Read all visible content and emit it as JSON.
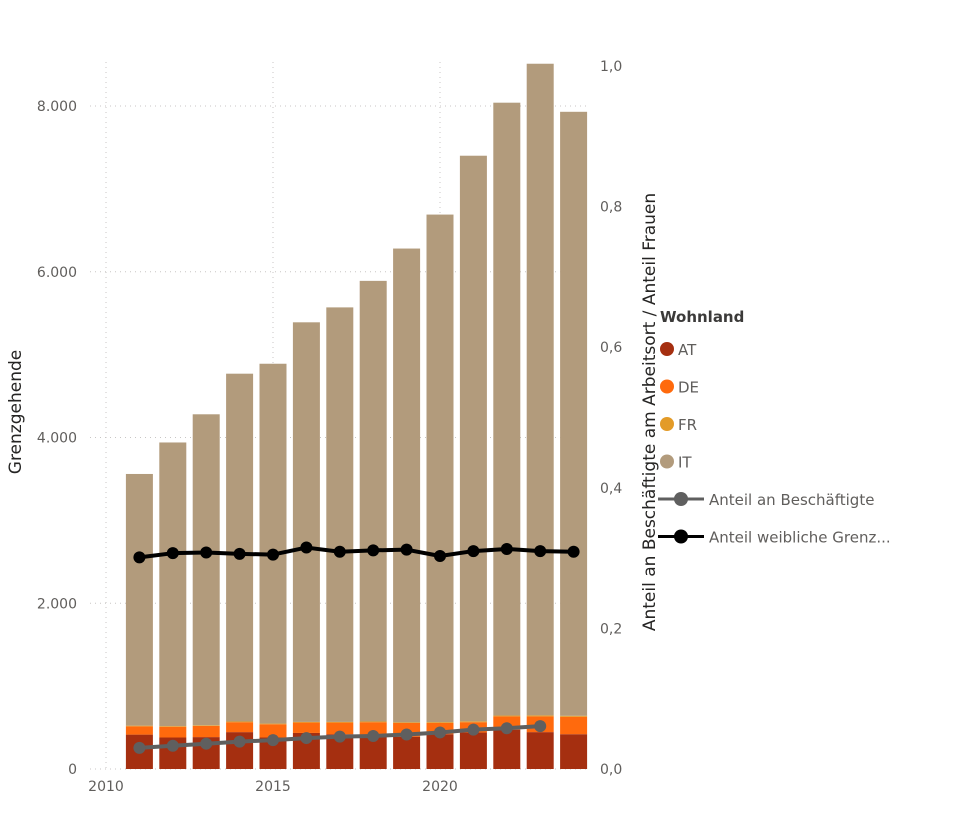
{
  "chart_data": {
    "type": "bar",
    "subtype": "stacked-bar-with-lines",
    "title": "",
    "xlabel": "",
    "ylabel": "Grenzgehende",
    "y2label": "Anteil an Beschäftigte am Arbeitsort / Anteil Frauen",
    "x_ticks": [
      "2010",
      "2015",
      "2020"
    ],
    "x_tick_values": [
      2010,
      2015,
      2020
    ],
    "xlim": [
      2010,
      2024.5
    ],
    "ylim": [
      0,
      8500
    ],
    "y_ticks": [
      0,
      2000,
      4000,
      6000,
      8000
    ],
    "y_tick_labels": [
      "0",
      "2.000",
      "4.000",
      "6.000",
      "8.000"
    ],
    "y2lim": [
      0,
      1.0
    ],
    "y2_ticks": [
      0,
      0.2,
      0.4,
      0.6,
      0.8,
      1.0
    ],
    "y2_tick_labels": [
      "0,0",
      "0,2",
      "0,4",
      "0,6",
      "0,8",
      "1,0"
    ],
    "grid": true,
    "legend_position": "right",
    "legend_title": "Wohnland",
    "x": [
      2011,
      2012,
      2013,
      2014,
      2015,
      2016,
      2017,
      2018,
      2019,
      2020,
      2021,
      2022,
      2023,
      2024
    ],
    "series": [
      {
        "name": "AT",
        "type": "bar",
        "color": "#A52F10",
        "values": [
          415,
          380,
          385,
          445,
          380,
          435,
          420,
          410,
          390,
          420,
          440,
          475,
          445,
          420
        ]
      },
      {
        "name": "DE",
        "type": "bar",
        "color": "#FF6A0D",
        "values": [
          100,
          130,
          135,
          120,
          160,
          125,
          140,
          155,
          165,
          135,
          125,
          160,
          190,
          210
        ]
      },
      {
        "name": "FR",
        "type": "bar",
        "color": "#E39B28",
        "values": [
          8,
          8,
          8,
          8,
          8,
          8,
          8,
          8,
          8,
          10,
          10,
          10,
          12,
          12
        ]
      },
      {
        "name": "IT",
        "type": "bar",
        "color": "#B29B7C",
        "values": [
          3037,
          3422,
          3752,
          4197,
          4342,
          4822,
          5002,
          5317,
          5717,
          6125,
          6825,
          7395,
          7863,
          7288
        ]
      },
      {
        "name": "Anteil an Beschäftigte",
        "type": "line",
        "axis": "y2",
        "color": "#5F5F5F",
        "values": [
          0.03,
          0.033,
          0.036,
          0.039,
          0.041,
          0.044,
          0.046,
          0.047,
          0.049,
          0.052,
          0.056,
          0.058,
          0.061,
          null
        ]
      },
      {
        "name": "Anteil weibliche Grenz...",
        "type": "line",
        "axis": "y2",
        "color": "#000000",
        "values": [
          0.301,
          0.307,
          0.308,
          0.306,
          0.305,
          0.315,
          0.309,
          0.311,
          0.312,
          0.303,
          0.31,
          0.313,
          0.31,
          0.309
        ]
      }
    ]
  },
  "legend": {
    "title": "Wohnland",
    "items": [
      {
        "label": "AT",
        "kind": "dot",
        "color": "#A52F10"
      },
      {
        "label": "DE",
        "kind": "dot",
        "color": "#FF6A0D"
      },
      {
        "label": "FR",
        "kind": "dot",
        "color": "#E39B28"
      },
      {
        "label": "IT",
        "kind": "dot",
        "color": "#B29B7C"
      },
      {
        "label": "Anteil an Beschäftigte",
        "kind": "line",
        "color": "#5F5F5F"
      },
      {
        "label": "Anteil weibliche Grenz...",
        "kind": "line",
        "color": "#000000"
      }
    ]
  }
}
